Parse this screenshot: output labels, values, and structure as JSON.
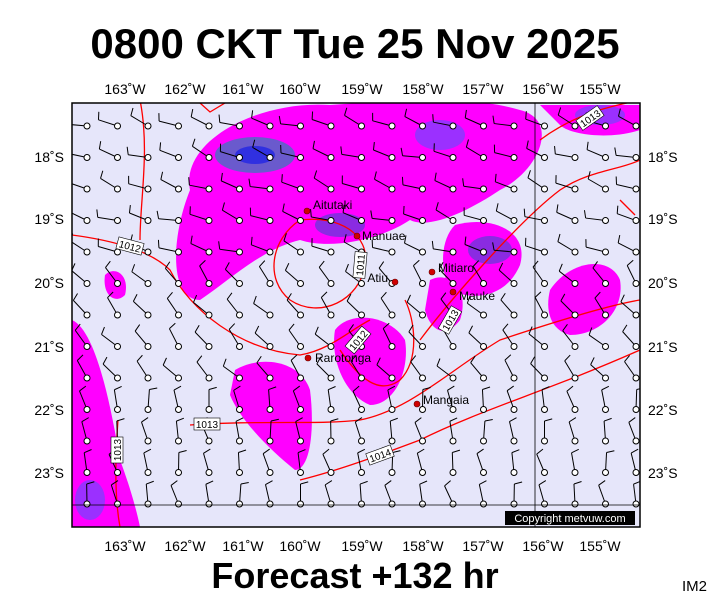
{
  "title": "0800 CKT Tue 25 Nov 2025",
  "footer": "Forecast +132 hr",
  "corner_label": "IM2",
  "copyright": "Copyright metvuw.com",
  "longitude_labels": [
    "163˚W",
    "162˚W",
    "161˚W",
    "160˚W",
    "159˚W",
    "158˚W",
    "157˚W",
    "156˚W",
    "155˚W"
  ],
  "latitude_labels": [
    "18˚S",
    "19˚S",
    "20˚S",
    "21˚S",
    "22˚S",
    "23˚S"
  ],
  "places": [
    "Aitutaki",
    "Manuae",
    "Atiu",
    "Mitiaro",
    "Mauke",
    "Rarotonga",
    "Mangaia"
  ],
  "isobar_labels": [
    "1013",
    "1012",
    "1011",
    "1012",
    "1013",
    "1013",
    "1014",
    "1013"
  ]
}
